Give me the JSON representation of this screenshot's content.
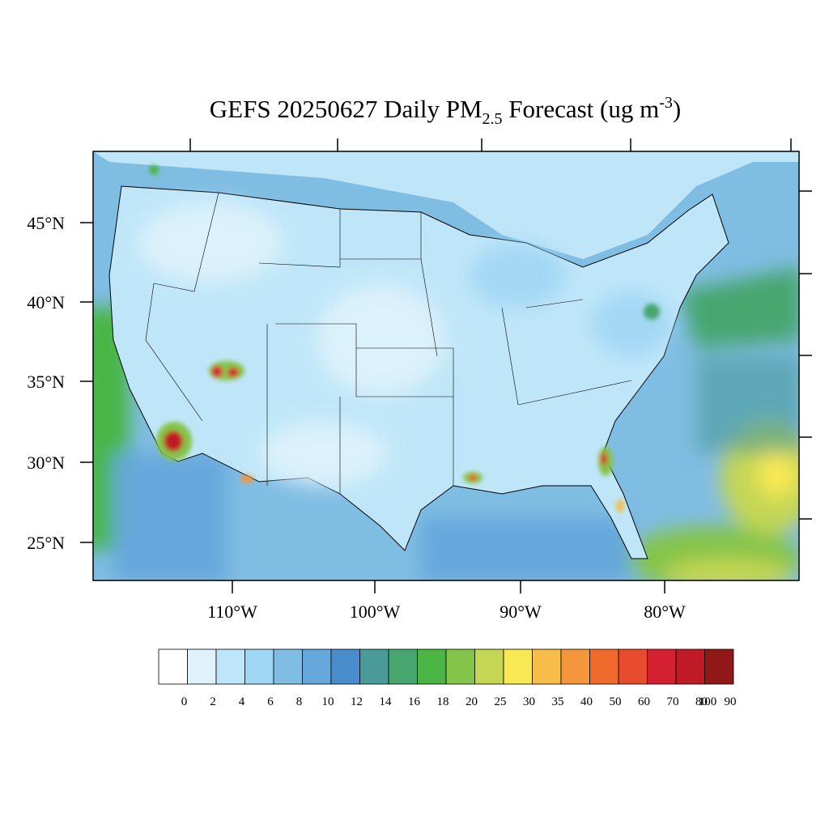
{
  "map": {
    "title_parts": [
      "GEFS 20250627 Daily PM",
      "2.5",
      " Forecast (ug m",
      "-3",
      ")"
    ],
    "lat_labels": [
      "45°N",
      "40°N",
      "35°N",
      "30°N",
      "25°N"
    ],
    "lon_labels": [
      "110°W",
      "100°W",
      "90°W",
      "80°W"
    ],
    "colorbar": {
      "labels": [
        0,
        2,
        4,
        6,
        8,
        10,
        12,
        14,
        16,
        18,
        20,
        25,
        30,
        35,
        40,
        50,
        60,
        70,
        80,
        90,
        100
      ],
      "colors": [
        "#ffffff",
        "#e0f3fc",
        "#bfe6f8",
        "#9fd6f4",
        "#80bde3",
        "#66a8dc",
        "#4a8dcc",
        "#4a9a9a",
        "#46a66e",
        "#4ab545",
        "#84c44a",
        "#c4d654",
        "#f8e854",
        "#f8bc48",
        "#f4963c",
        "#f06a2c",
        "#e84c2c",
        "#d42030",
        "#c01a26",
        "#901818"
      ]
    }
  }
}
